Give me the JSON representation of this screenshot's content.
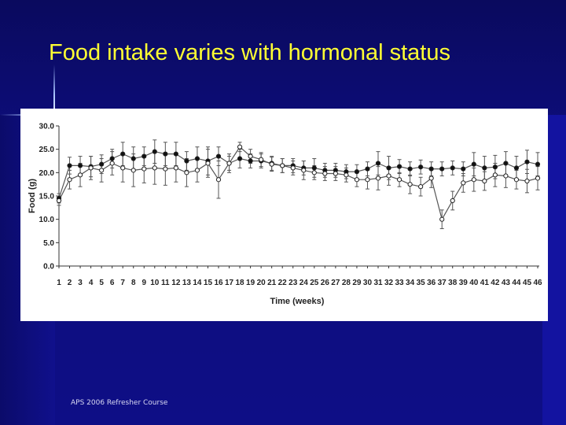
{
  "slide": {
    "title": "Food intake varies with hormonal status",
    "footer": "APS 2006 Refresher Course"
  },
  "chart_data": {
    "type": "line",
    "title": "",
    "xlabel": "Time (weeks)",
    "ylabel": "Food (g)",
    "ylim": [
      0,
      30
    ],
    "yticks": [
      "0.0",
      "5.0",
      "10.0",
      "15.0",
      "20.0",
      "25.0",
      "30.0"
    ],
    "x": [
      1,
      2,
      3,
      4,
      5,
      6,
      7,
      8,
      9,
      10,
      11,
      12,
      13,
      14,
      15,
      16,
      17,
      18,
      19,
      20,
      21,
      22,
      23,
      24,
      25,
      26,
      27,
      28,
      29,
      30,
      31,
      32,
      33,
      34,
      35,
      36,
      37,
      38,
      39,
      40,
      41,
      42,
      43,
      44,
      45,
      46
    ],
    "grid": false,
    "legend": "none",
    "colors": {
      "line": "#555555",
      "marker_filled": "#111111",
      "marker_open": "#ffffff"
    },
    "series": [
      {
        "marker": "filled-circle",
        "values": [
          14.5,
          21.5,
          21.5,
          21.3,
          21.8,
          23.0,
          24.0,
          23.0,
          23.5,
          24.5,
          24.0,
          24.0,
          22.5,
          23.0,
          22.5,
          23.5,
          22.0,
          23.0,
          22.5,
          22.5,
          22.0,
          21.5,
          21.5,
          21.0,
          21.0,
          20.5,
          20.5,
          20.2,
          20.2,
          20.8,
          22.0,
          21.0,
          21.3,
          20.8,
          21.2,
          20.8,
          20.8,
          21.0,
          20.8,
          21.8,
          21.0,
          21.2,
          22.0,
          21.0,
          22.3,
          21.8
        ],
        "errors": [
          1.0,
          1.8,
          2.0,
          2.2,
          2.0,
          2.0,
          2.5,
          2.5,
          2.0,
          2.5,
          2.5,
          2.5,
          2.0,
          2.5,
          3.0,
          2.0,
          2.0,
          2.0,
          1.5,
          1.5,
          1.5,
          1.5,
          1.5,
          1.5,
          2.0,
          1.5,
          1.5,
          1.5,
          1.5,
          1.5,
          2.5,
          2.5,
          1.5,
          1.5,
          1.5,
          1.5,
          1.5,
          1.5,
          1.5,
          2.5,
          2.5,
          2.5,
          2.5,
          2.5,
          2.5,
          2.5
        ]
      },
      {
        "marker": "open-circle",
        "values": [
          14.0,
          18.5,
          19.5,
          21.0,
          20.5,
          22.0,
          21.0,
          20.5,
          20.8,
          21.0,
          20.8,
          21.0,
          20.0,
          20.5,
          22.0,
          18.5,
          22.0,
          25.5,
          23.5,
          22.8,
          21.8,
          21.5,
          21.0,
          20.5,
          20.0,
          19.8,
          19.8,
          19.5,
          18.5,
          18.5,
          18.8,
          19.3,
          18.5,
          17.5,
          17.0,
          18.8,
          10.0,
          14.0,
          17.8,
          18.5,
          18.2,
          19.5,
          19.3,
          18.5,
          18.2,
          18.8
        ],
        "errors": [
          1.0,
          2.0,
          2.5,
          2.5,
          2.5,
          2.5,
          3.0,
          3.5,
          3.0,
          3.5,
          3.5,
          3.0,
          3.0,
          2.5,
          3.0,
          4.0,
          1.5,
          1.0,
          1.5,
          1.5,
          1.5,
          1.5,
          1.5,
          2.0,
          1.5,
          1.5,
          1.5,
          1.5,
          1.5,
          2.0,
          2.5,
          2.0,
          1.5,
          2.0,
          2.0,
          2.0,
          2.0,
          2.0,
          2.0,
          2.5,
          2.0,
          2.5,
          2.5,
          2.0,
          2.5,
          2.5
        ]
      }
    ]
  }
}
